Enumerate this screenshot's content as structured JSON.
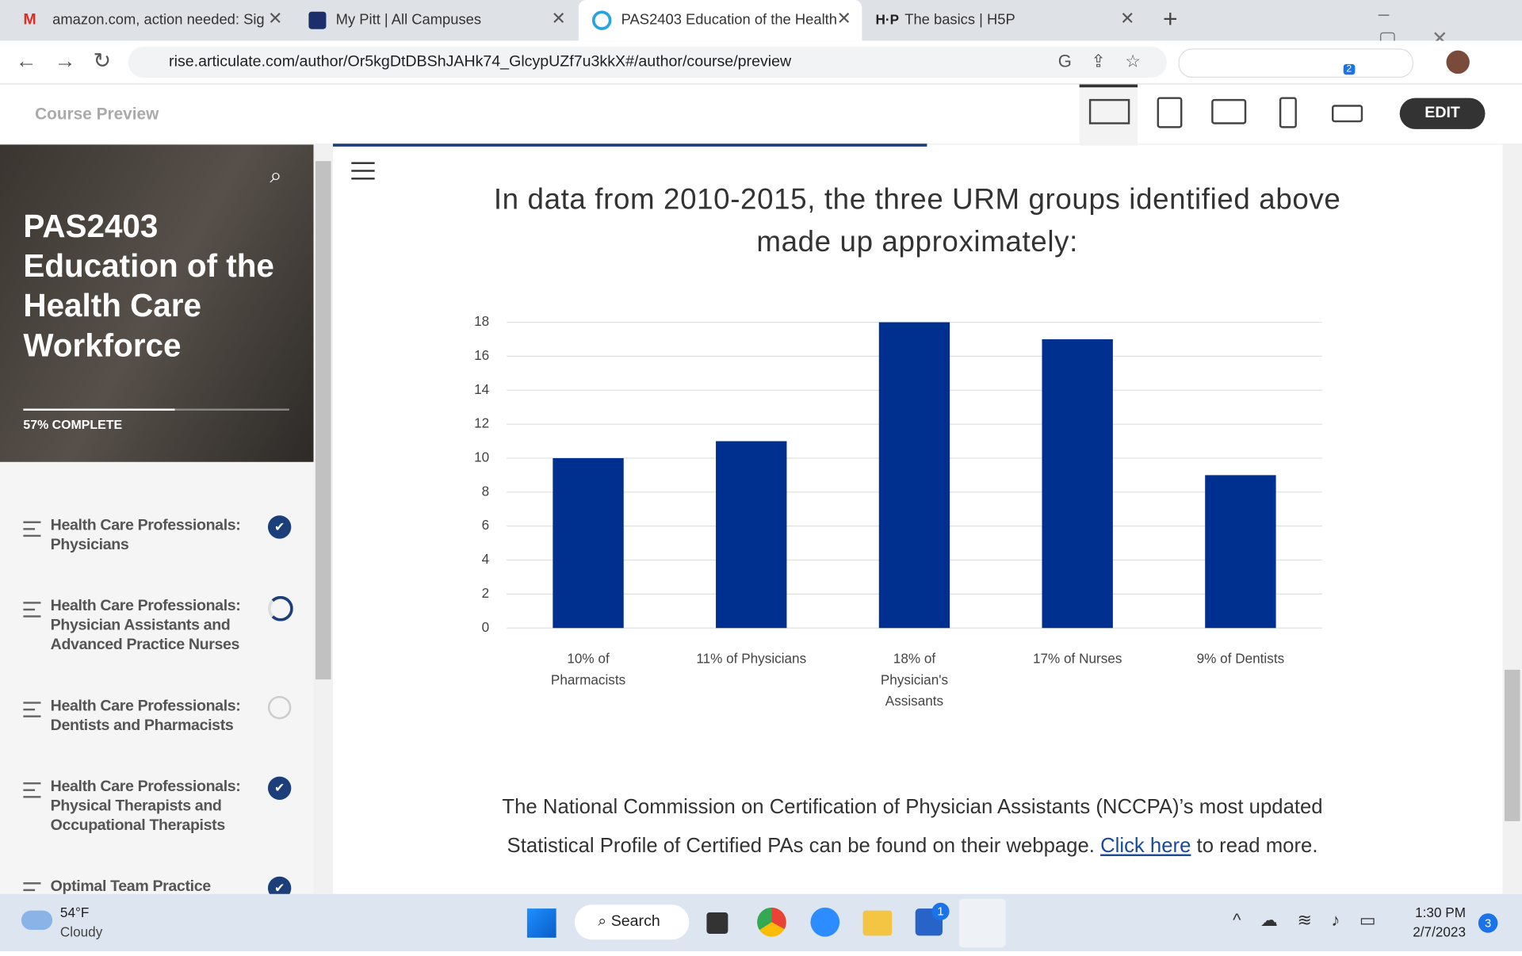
{
  "browser": {
    "tabs": [
      "amazon.com, action needed: Sig",
      "My Pitt | All Campuses",
      "PAS2403 Education of the Health",
      "The basics | H5P"
    ],
    "url": "rise.articulate.com/author/Or5kgDtDBShJAHk74_GlcypUZf7u3kkX#/author/course/preview",
    "extension_badge": "2"
  },
  "header": {
    "title": "Course Preview",
    "edit": "EDIT"
  },
  "sidebar": {
    "course_title": "PAS2403 Education of the Health Care Workforce",
    "progress": "57% COMPLETE",
    "lessons": [
      {
        "title": "Health Care Professionals: Physicians",
        "status": "complete"
      },
      {
        "title": "Health Care Professionals: Physician Assistants and Advanced Practice Nurses",
        "status": "in-progress"
      },
      {
        "title": "Health Care Professionals: Dentists and Pharmacists",
        "status": "not-started"
      },
      {
        "title": "Health Care Professionals: Physical Therapists and Occupational Therapists",
        "status": "complete"
      },
      {
        "title": "Optimal Team Practice",
        "status": "complete"
      }
    ]
  },
  "chart_data": {
    "type": "bar",
    "title": "In data from 2010-2015, the three URM groups identified above made up approximately:",
    "categories": [
      "10% of Pharmacists",
      "11% of Physicians",
      "18% of Physician's Assisants",
      "17% of Nurses",
      "9% of Dentists"
    ],
    "values": [
      10,
      11,
      18,
      17,
      9
    ],
    "color": "#00308f",
    "ylim": [
      0,
      18
    ],
    "yticks": [
      0,
      2,
      4,
      6,
      8,
      10,
      12,
      14,
      16,
      18
    ],
    "grid": true
  },
  "paragraph": {
    "text": "The National Commission on Certification of Physician Assistants (NCCPA)’s most updated Statistical Profile of Certified PAs can be found on their webpage. ",
    "link": "Click here",
    "after": " to read more."
  },
  "taskbar": {
    "temperature": "54°F",
    "weather": "Cloudy",
    "search": "Search",
    "store_badge": "1",
    "time": "1:30 PM",
    "date": "2/7/2023",
    "notifications": "3"
  }
}
